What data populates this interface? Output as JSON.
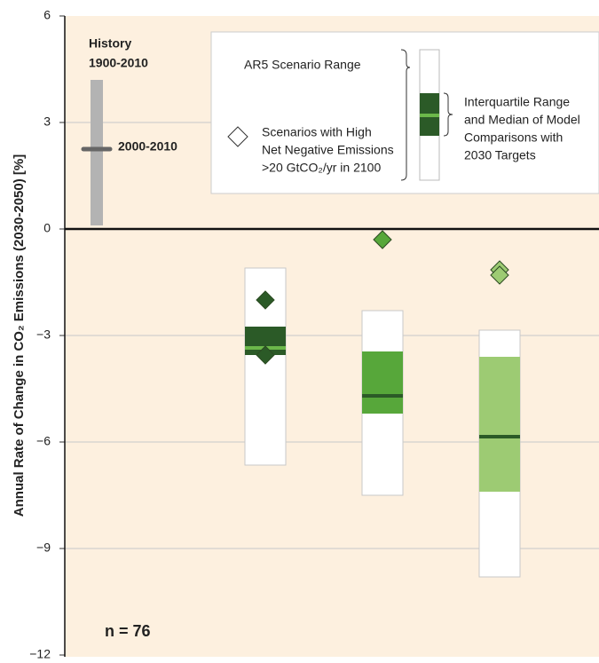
{
  "chart_data": {
    "type": "box",
    "ylabel": "Annual Rate of Change in CO₂ Emissions (2030-2050) [%]",
    "ylim": [
      -12,
      6
    ],
    "yticks": [
      6,
      3,
      0,
      {
        "value": -3,
        "label": "−3"
      },
      {
        "value": -6,
        "label": "−6"
      },
      {
        "value": -9,
        "label": "−9"
      },
      {
        "value": -12,
        "label": "−12"
      }
    ],
    "grid": true,
    "categories": [
      null,
      null,
      null
    ],
    "range_high": [
      -1.1,
      -2.3,
      -2.85
    ],
    "range_low": [
      -6.65,
      -7.5,
      -9.8
    ],
    "iqr_high": [
      -2.75,
      -3.45,
      -3.6
    ],
    "iqr_low": [
      -3.55,
      -5.2,
      -7.4
    ],
    "median": [
      -3.35,
      -4.7,
      -5.85
    ],
    "diamonds": [
      [
        -2.0,
        -3.55
      ],
      [
        -0.3
      ],
      [
        -1.15,
        -1.3
      ]
    ],
    "colors": [
      "#2b5a27",
      "#57a73a",
      "#9dcb73"
    ],
    "median_colors": [
      "#6cb84a",
      "#2b5a27",
      "#2b5a27"
    ],
    "history": {
      "label": "History",
      "period": "1900-2010",
      "high": 4.2,
      "low": 0.1,
      "recent_label": "2000-2010",
      "recent": 2.25
    },
    "legend": {
      "range_label": "AR5 Scenario Range",
      "iqr_label": [
        "Interquartile Range",
        "and Median of Model",
        "Comparisons with",
        "2030 Targets"
      ],
      "diamond_label": [
        "Scenarios with High",
        "Net Negative Emissions",
        ">20 GtCO₂/yr in 2100"
      ]
    },
    "annotation": "n = 76"
  }
}
